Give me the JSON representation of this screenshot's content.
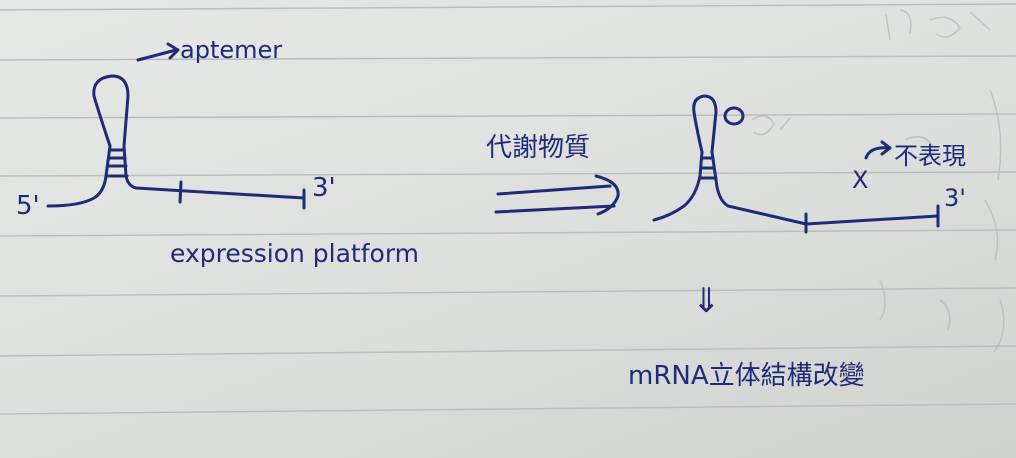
{
  "colors": {
    "paper": "#e3e5e3",
    "rule": "#b9bdc2",
    "ink": "#1f2a78",
    "ghost": "#b8bbbf"
  },
  "labels": {
    "aptamer": "aptemer",
    "expression_platform": "expression platform",
    "five_prime": "5'",
    "three_prime_left": "3'",
    "three_prime_right": "3'",
    "metabolite": "代謝物質",
    "not_expressed": "不表現",
    "x_mark": "X",
    "down_arrow": "⇓",
    "mrna_change": "mRNA立体結構改變"
  }
}
